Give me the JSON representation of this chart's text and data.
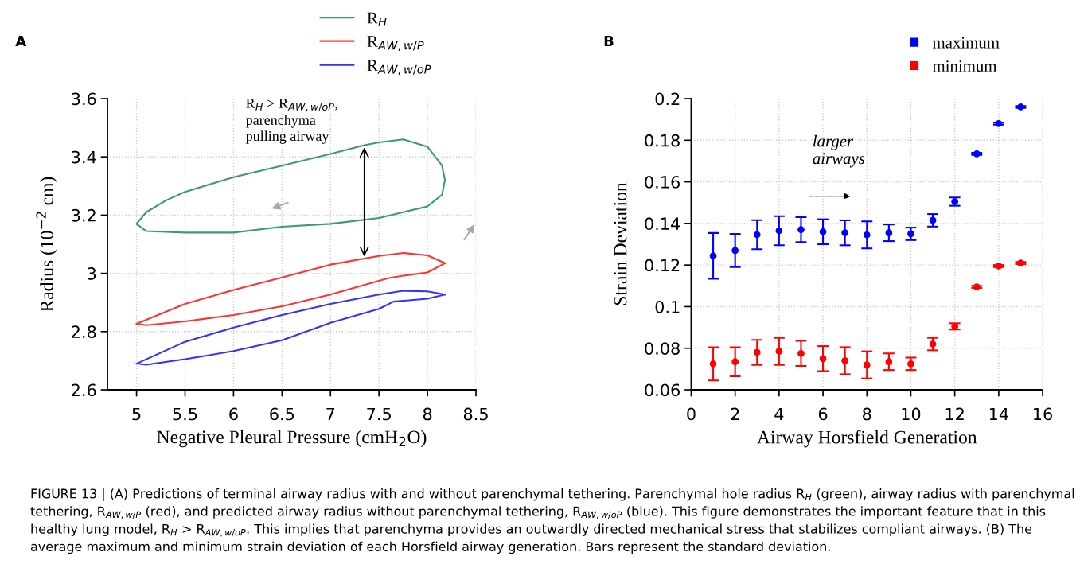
{
  "chart_data": [
    {
      "type": "line",
      "title": "A",
      "xlabel": "Negative Pleural Pressure (cmH$_{2}$O)",
      "ylabel": "Radius (10$^{−2}$ cm)",
      "xlim": [
        4.7,
        8.5
      ],
      "ylim": [
        2.6,
        3.6
      ],
      "xticks": [
        5,
        5.5,
        6,
        6.5,
        7,
        7.5,
        8,
        8.5
      ],
      "yticks": [
        2.6,
        2.8,
        3,
        3.2,
        3.4,
        3.6
      ],
      "grid": true,
      "legend": "top right",
      "marker": "none",
      "line_style": "solid",
      "annotations": [
        "R$_{H}$ > R$_{AW,w/oP}$,\nparenchyma\npulling airway"
      ],
      "series": [
        {
          "name": "R$_{H}$",
          "color": "#3d9a6a",
          "x": [
            5.0,
            5.1,
            5.3,
            5.5,
            6.0,
            6.5,
            7.0,
            7.35,
            7.5,
            7.75,
            8.0,
            8.15,
            8.18,
            8.15,
            8.0,
            7.75,
            7.5,
            7.0,
            6.5,
            6.0,
            5.5,
            5.1,
            5.0
          ],
          "values": [
            3.17,
            3.21,
            3.25,
            3.28,
            3.33,
            3.37,
            3.41,
            3.44,
            3.45,
            3.46,
            3.435,
            3.37,
            3.32,
            3.27,
            3.23,
            3.21,
            3.19,
            3.17,
            3.16,
            3.14,
            3.14,
            3.145,
            3.17
          ]
        },
        {
          "name": "R$_{AW,w/P}$",
          "color": "#ff3333",
          "x": [
            5.0,
            5.5,
            6.0,
            6.5,
            7.0,
            7.5,
            7.75,
            8.0,
            8.18,
            8.0,
            7.75,
            7.6,
            7.0,
            6.5,
            6.0,
            5.5,
            5.1,
            5.0
          ],
          "values": [
            2.827,
            2.895,
            2.943,
            2.986,
            3.03,
            3.06,
            3.07,
            3.062,
            3.035,
            3.003,
            2.992,
            2.984,
            2.927,
            2.887,
            2.857,
            2.835,
            2.822,
            2.827
          ]
        },
        {
          "name": "R$_{AW,w/oP}$",
          "color": "#3333ff",
          "x": [
            5.0,
            5.5,
            6.0,
            6.5,
            7.0,
            7.5,
            7.75,
            8.0,
            8.18,
            8.0,
            7.65,
            7.5,
            7.0,
            6.5,
            6.0,
            5.5,
            5.1,
            5.0
          ],
          "values": [
            2.69,
            2.765,
            2.814,
            2.857,
            2.895,
            2.927,
            2.94,
            2.938,
            2.927,
            2.913,
            2.903,
            2.878,
            2.83,
            2.77,
            2.733,
            2.705,
            2.686,
            2.69
          ]
        }
      ]
    },
    {
      "type": "scatter",
      "title": "B",
      "xlabel": "Airway Horsfield Generation",
      "ylabel": "Strain Deviation",
      "xlim": [
        0,
        16
      ],
      "ylim": [
        0.06,
        0.2
      ],
      "xticks": [
        0,
        2,
        4,
        6,
        8,
        10,
        12,
        14,
        16
      ],
      "yticks": [
        0.06,
        0.08,
        0.1,
        0.12,
        0.14,
        0.16,
        0.18,
        0.2
      ],
      "grid": true,
      "legend": "top right",
      "marker": "circle",
      "annotations": [
        "larger\nairways",
        "FIGURE 13 | (A) Predictions of terminal airway radius with and without parenchymal tethering. Parenchymal hole radius R$_{H}$ (green), airway radius with parenchymal tethering, R$_{AW,w/P}$ (red), and predicted airway radius without parenchymal tethering, R$_{AW,w/oP}$ (blue). This figure demonstrates the important feature that in this healthy lung model, R$_{H}$ > R$_{AW,w/oP}$. This implies that parenchyma provides an outwardly directed mechanical stress that stabilizes compliant airways. (B) The average maximum and minimum strain deviation of each Horsfield airway generation. Bars represent the standard deviation."
      ],
      "x": [
        1,
        2,
        3,
        4,
        5,
        6,
        7,
        8,
        9,
        10,
        11,
        12,
        13,
        14,
        15
      ],
      "series": [
        {
          "name": "maximum",
          "color": "#0000ff",
          "values": [
            0.1244,
            0.127,
            0.1346,
            0.1365,
            0.137,
            0.136,
            0.1355,
            0.1345,
            0.1355,
            0.135,
            0.1415,
            0.1505,
            0.1735,
            0.188,
            0.196
          ],
          "errors": [
            0.011,
            0.008,
            0.007,
            0.007,
            0.006,
            0.006,
            0.006,
            0.0065,
            0.004,
            0.003,
            0.003,
            0.002,
            0.0005,
            0.0005,
            0.0005
          ]
        },
        {
          "name": "minimum",
          "color": "#ff0000",
          "values": [
            0.0725,
            0.0735,
            0.078,
            0.0785,
            0.0775,
            0.075,
            0.074,
            0.072,
            0.0735,
            0.0725,
            0.082,
            0.0905,
            0.1095,
            0.1195,
            0.121
          ],
          "errors": [
            0.008,
            0.007,
            0.006,
            0.0065,
            0.006,
            0.006,
            0.0065,
            0.0065,
            0.004,
            0.003,
            0.003,
            0.0015,
            0.0005,
            0.0005,
            0.0005
          ]
        }
      ]
    }
  ]
}
